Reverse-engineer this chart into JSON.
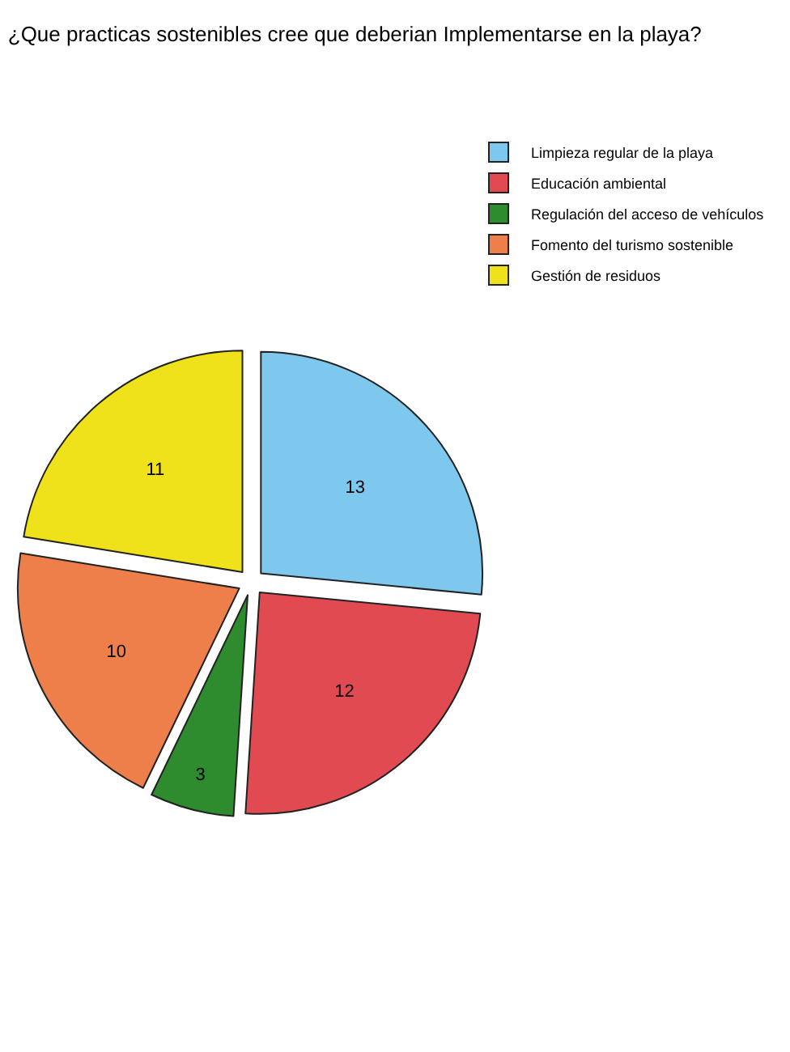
{
  "chart_data": {
    "type": "pie",
    "title": "¿Que practicas sostenibles cree que deberian Implementarse en la playa?",
    "categories": [
      "Limpieza regular de la playa",
      "Educación ambiental",
      "Regulación del acceso de vehículos",
      "Fomento del turismo sostenible",
      "Gestión de residuos"
    ],
    "values": [
      13,
      12,
      3,
      10,
      11
    ],
    "colors": [
      "#7ec8ee",
      "#e24a52",
      "#2e8b2e",
      "#ee7f4b",
      "#f0e21a"
    ],
    "data_labels": true,
    "legend": "top right"
  }
}
